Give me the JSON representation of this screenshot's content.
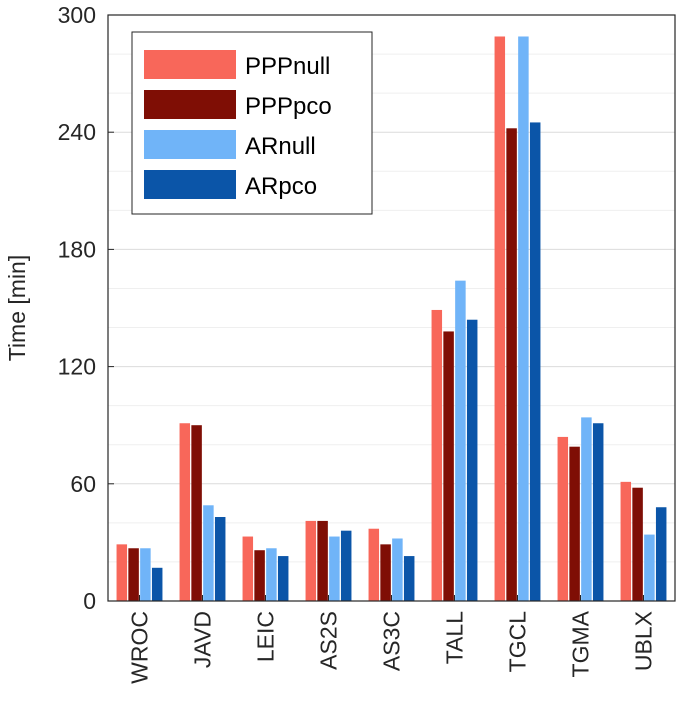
{
  "chart_data": {
    "type": "bar",
    "title": "",
    "xlabel": "",
    "ylabel": "Time [min]",
    "ylim": [
      0,
      300
    ],
    "yticks": [
      0,
      60,
      120,
      180,
      240,
      300
    ],
    "grid": "y-only",
    "legend_position": "top-left",
    "categories": [
      "WROC",
      "JAVD",
      "LEIC",
      "AS2S",
      "AS3C",
      "TALL",
      "TGCL",
      "TGMA",
      "UBLX"
    ],
    "series": [
      {
        "name": "PPPnull",
        "color": "#F8675A",
        "values": [
          29,
          91,
          33,
          41,
          37,
          149,
          289,
          84,
          61
        ]
      },
      {
        "name": "PPPpco",
        "color": "#7F0E05",
        "values": [
          27,
          90,
          26,
          41,
          29,
          138,
          242,
          79,
          58
        ]
      },
      {
        "name": "ARnull",
        "color": "#70B4F8",
        "values": [
          27,
          49,
          27,
          33,
          32,
          164,
          289,
          94,
          34
        ]
      },
      {
        "name": "ARpco",
        "color": "#0B55A8",
        "values": [
          17,
          43,
          23,
          36,
          23,
          144,
          245,
          91,
          48
        ]
      }
    ]
  }
}
